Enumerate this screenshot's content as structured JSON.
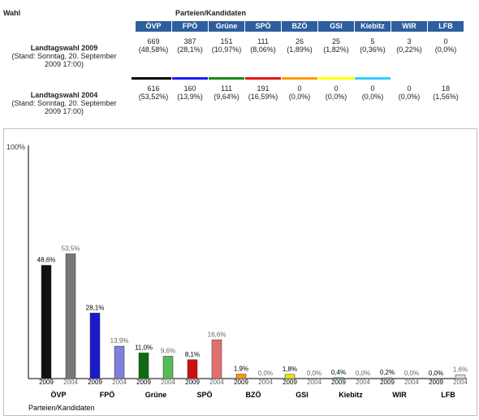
{
  "table": {
    "col_header_left": "Wahl",
    "col_header_parties": "Parteien/Kandidaten",
    "parties": [
      {
        "name": "ÖVP",
        "color": "#000000"
      },
      {
        "name": "FPÖ",
        "color": "#1a1aff"
      },
      {
        "name": "Grüne",
        "color": "#1a8a1a"
      },
      {
        "name": "SPÖ",
        "color": "#e01a1a"
      },
      {
        "name": "BZÖ",
        "color": "#ff9900"
      },
      {
        "name": "GSI",
        "color": "#ffff00"
      },
      {
        "name": "Kiebitz",
        "color": "#33ccff"
      },
      {
        "name": "WIR",
        "color": "#ffffff"
      },
      {
        "name": "LFB",
        "color": "#ffffff"
      }
    ],
    "rows": [
      {
        "title": "Landtagswahl 2009",
        "stand_line1": "(Stand: Sonntag, 20. September",
        "stand_line2": "2009 17:00)",
        "votes": [
          "669",
          "387",
          "151",
          "111",
          "26",
          "25",
          "5",
          "3",
          "0"
        ],
        "pcts": [
          "(48,58%)",
          "(28,1%)",
          "(10,97%)",
          "(8,06%)",
          "(1,89%)",
          "(1,82%)",
          "(0,36%)",
          "(0,22%)",
          "(0,0%)"
        ]
      },
      {
        "title": "Landtagswahl 2004",
        "stand_line1": "(Stand: Sonntag, 20. September",
        "stand_line2": "2009 17:00)",
        "votes": [
          "616",
          "160",
          "111",
          "191",
          "0",
          "0",
          "0",
          "0",
          "18"
        ],
        "pcts": [
          "(53,52%)",
          "(13,9%)",
          "(9,64%)",
          "(16,59%)",
          "(0,0%)",
          "(0,0%)",
          "(0,0%)",
          "(0,0%)",
          "(1,56%)"
        ]
      }
    ]
  },
  "chart_data": {
    "type": "bar",
    "ylabel_top": "100%",
    "xlabel": "Parteien/Kandidaten",
    "ylim": [
      0,
      100
    ],
    "categories": [
      "ÖVP",
      "FPÖ",
      "Grüne",
      "SPÖ",
      "BZÖ",
      "GSI",
      "Kiebitz",
      "WIR",
      "LFB"
    ],
    "series": [
      {
        "name": "2009",
        "values": [
          48.6,
          28.1,
          11.0,
          8.1,
          1.9,
          1.8,
          0.4,
          0.2,
          0.0
        ],
        "labels": [
          "48,6%",
          "28,1%",
          "11,0%",
          "8,1%",
          "1,9%",
          "1,8%",
          "0,4%",
          "0,2%",
          "0,0%"
        ]
      },
      {
        "name": "2004",
        "values": [
          53.5,
          13.9,
          9.6,
          16.6,
          0.0,
          0.0,
          0.0,
          0.0,
          1.6
        ],
        "labels": [
          "53,5%",
          "13,9%",
          "9,6%",
          "16,6%",
          "0,0%",
          "0,0%",
          "0,0%",
          "0,0%",
          "1,6%"
        ]
      }
    ],
    "colors_2009": [
      "#111111",
      "#1a1acc",
      "#0f6b0f",
      "#cc1111",
      "#ff9900",
      "#e6e600",
      "#33ccff",
      "#cccccc",
      "#cccccc"
    ],
    "colors_2004": [
      "#777777",
      "#8080dd",
      "#55bb55",
      "#e07070",
      "#ffcc66",
      "#ffff88",
      "#99e6ff",
      "#dddddd",
      "#dddddd"
    ]
  }
}
